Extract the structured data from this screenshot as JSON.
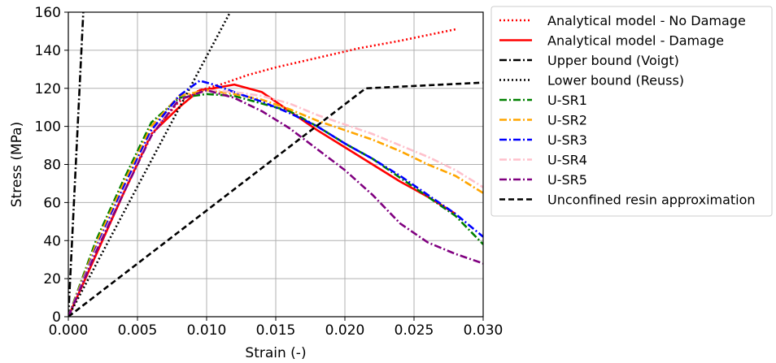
{
  "chart_data": {
    "type": "line",
    "title": "",
    "xlabel": "Strain (-)",
    "ylabel": "Stress (MPa)",
    "xlim": [
      0.0,
      0.03
    ],
    "ylim": [
      0,
      160
    ],
    "x_ticks": [
      "0.000",
      "0.005",
      "0.010",
      "0.015",
      "0.020",
      "0.025",
      "0.030"
    ],
    "y_ticks": [
      "0",
      "20",
      "40",
      "60",
      "80",
      "100",
      "120",
      "140",
      "160"
    ],
    "grid": true,
    "legend_position": "outside-right",
    "series": [
      {
        "name": "Analytical model - No Damage",
        "color": "#ff0000",
        "style": "dotted",
        "points": [
          [
            0,
            0
          ],
          [
            0.004,
            65
          ],
          [
            0.006,
            96
          ],
          [
            0.008,
            113
          ],
          [
            0.0095,
            119
          ],
          [
            0.011,
            122
          ],
          [
            0.013,
            127
          ],
          [
            0.015,
            131
          ],
          [
            0.018,
            136
          ],
          [
            0.021,
            141
          ],
          [
            0.024,
            145
          ],
          [
            0.028,
            151
          ]
        ]
      },
      {
        "name": "Analytical model - Damage",
        "color": "#ff0000",
        "style": "solid",
        "points": [
          [
            0,
            0
          ],
          [
            0.004,
            65
          ],
          [
            0.006,
            96
          ],
          [
            0.008,
            110
          ],
          [
            0.0095,
            119
          ],
          [
            0.0105,
            120
          ],
          [
            0.012,
            122
          ],
          [
            0.014,
            118
          ],
          [
            0.016,
            108
          ],
          [
            0.018,
            98
          ],
          [
            0.02,
            89
          ],
          [
            0.022,
            80
          ],
          [
            0.024,
            71
          ],
          [
            0.026,
            63
          ],
          [
            0.028,
            54
          ]
        ]
      },
      {
        "name": "Upper bound (Voigt)",
        "color": "#000000",
        "style": "dashdot",
        "points": [
          [
            0,
            0
          ],
          [
            0.00108,
            160
          ]
        ]
      },
      {
        "name": "Lower bound (Reuss)",
        "color": "#000000",
        "style": "dotted",
        "points": [
          [
            0,
            0
          ],
          [
            0.0117,
            160
          ]
        ]
      },
      {
        "name": "U-SR1",
        "color": "#008000",
        "style": "dashdot",
        "points": [
          [
            0,
            0
          ],
          [
            0.002,
            40
          ],
          [
            0.004,
            72
          ],
          [
            0.006,
            102
          ],
          [
            0.008,
            115
          ],
          [
            0.01,
            117
          ],
          [
            0.012,
            116
          ],
          [
            0.014,
            112
          ],
          [
            0.016,
            108
          ],
          [
            0.018,
            100
          ],
          [
            0.02,
            91
          ],
          [
            0.022,
            83
          ],
          [
            0.024,
            73
          ],
          [
            0.026,
            63
          ],
          [
            0.028,
            53
          ],
          [
            0.03,
            38
          ]
        ]
      },
      {
        "name": "U-SR2",
        "color": "#ffa500",
        "style": "dashdot",
        "points": [
          [
            0,
            0
          ],
          [
            0.002,
            38
          ],
          [
            0.004,
            70
          ],
          [
            0.006,
            100
          ],
          [
            0.008,
            116
          ],
          [
            0.01,
            119
          ],
          [
            0.012,
            117
          ],
          [
            0.014,
            114
          ],
          [
            0.016,
            109
          ],
          [
            0.018,
            103
          ],
          [
            0.02,
            98
          ],
          [
            0.022,
            93
          ],
          [
            0.024,
            87
          ],
          [
            0.026,
            80
          ],
          [
            0.028,
            74
          ],
          [
            0.03,
            65
          ]
        ]
      },
      {
        "name": "U-SR3",
        "color": "#0000ff",
        "style": "dashdot",
        "points": [
          [
            0,
            0
          ],
          [
            0.002,
            36
          ],
          [
            0.004,
            68
          ],
          [
            0.006,
            98
          ],
          [
            0.008,
            116
          ],
          [
            0.0095,
            124
          ],
          [
            0.0105,
            122
          ],
          [
            0.012,
            118
          ],
          [
            0.014,
            113
          ],
          [
            0.016,
            107
          ],
          [
            0.018,
            100
          ],
          [
            0.02,
            91
          ],
          [
            0.022,
            83
          ],
          [
            0.024,
            74
          ],
          [
            0.026,
            64
          ],
          [
            0.028,
            54
          ],
          [
            0.03,
            42
          ]
        ]
      },
      {
        "name": "U-SR4",
        "color": "#ffc0cb",
        "style": "dashdot",
        "points": [
          [
            0,
            0
          ],
          [
            0.002,
            35
          ],
          [
            0.004,
            66
          ],
          [
            0.006,
            96
          ],
          [
            0.008,
            114
          ],
          [
            0.01,
            119
          ],
          [
            0.012,
            118
          ],
          [
            0.014,
            116
          ],
          [
            0.016,
            112
          ],
          [
            0.018,
            106
          ],
          [
            0.02,
            101
          ],
          [
            0.022,
            96
          ],
          [
            0.024,
            90
          ],
          [
            0.026,
            84
          ],
          [
            0.028,
            77
          ],
          [
            0.03,
            68
          ]
        ]
      },
      {
        "name": "U-SR5",
        "color": "#800080",
        "style": "dashdot",
        "points": [
          [
            0,
            0
          ],
          [
            0.002,
            34
          ],
          [
            0.004,
            65
          ],
          [
            0.006,
            95
          ],
          [
            0.008,
            114
          ],
          [
            0.01,
            119
          ],
          [
            0.011,
            117
          ],
          [
            0.012,
            115
          ],
          [
            0.014,
            108
          ],
          [
            0.016,
            99
          ],
          [
            0.018,
            88
          ],
          [
            0.02,
            77
          ],
          [
            0.022,
            64
          ],
          [
            0.024,
            49
          ],
          [
            0.026,
            39
          ],
          [
            0.028,
            33
          ],
          [
            0.03,
            28
          ]
        ]
      },
      {
        "name": "Unconfined resin approximation",
        "color": "#000000",
        "style": "dashed",
        "points": [
          [
            0,
            0
          ],
          [
            0.0215,
            120
          ],
          [
            0.03,
            123
          ]
        ]
      }
    ]
  }
}
